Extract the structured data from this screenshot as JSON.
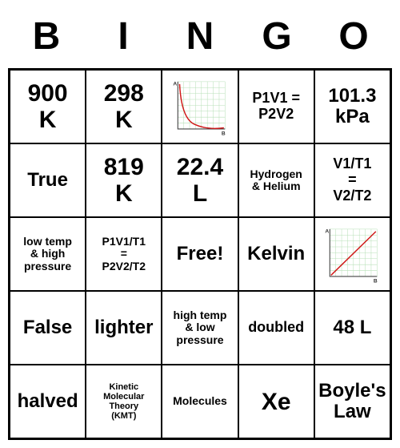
{
  "header": [
    "B",
    "I",
    "N",
    "G",
    "O"
  ],
  "cells": [
    [
      {
        "text": "900\nK",
        "size": "fs-xl"
      },
      {
        "text": "298\nK",
        "size": "fs-xl"
      },
      {
        "chart": "inverse"
      },
      {
        "text": "P1V1 =\nP2V2",
        "size": "fs-m"
      },
      {
        "text": "101.3\nkPa",
        "size": "fs-l"
      }
    ],
    [
      {
        "text": "True",
        "size": "fs-l"
      },
      {
        "text": "819\nK",
        "size": "fs-xl"
      },
      {
        "text": "22.4\nL",
        "size": "fs-xl"
      },
      {
        "text": "Hydrogen\n& Helium",
        "size": "fs-s"
      },
      {
        "text": "V1/T1\n=\nV2/T2",
        "size": "fs-m"
      }
    ],
    [
      {
        "text": "low temp\n& high\npressure",
        "size": "fs-s"
      },
      {
        "text": "P1V1/T1\n=\nP2V2/T2",
        "size": "fs-s"
      },
      {
        "text": "Free!",
        "size": "fs-l"
      },
      {
        "text": "Kelvin",
        "size": "fs-l"
      },
      {
        "chart": "direct"
      }
    ],
    [
      {
        "text": "False",
        "size": "fs-l"
      },
      {
        "text": "lighter",
        "size": "fs-l"
      },
      {
        "text": "high temp\n& low\npressure",
        "size": "fs-s"
      },
      {
        "text": "doubled",
        "size": "fs-m"
      },
      {
        "text": "48 L",
        "size": "fs-l"
      }
    ],
    [
      {
        "text": "halved",
        "size": "fs-l"
      },
      {
        "text": "Kinetic\nMolecular\nTheory\n(KMT)",
        "size": "fs-xs"
      },
      {
        "text": "Molecules",
        "size": "fs-s"
      },
      {
        "text": "Xe",
        "size": "fs-xl"
      },
      {
        "text": "Boyle's\nLaw",
        "size": "fs-l"
      }
    ]
  ],
  "chart_styles": {
    "grid_color": "#b8e0b8",
    "axis_color": "#444444",
    "curve_color": "#d01818",
    "bg_color": "#ffffff",
    "label_a": "A",
    "label_b": "B"
  }
}
